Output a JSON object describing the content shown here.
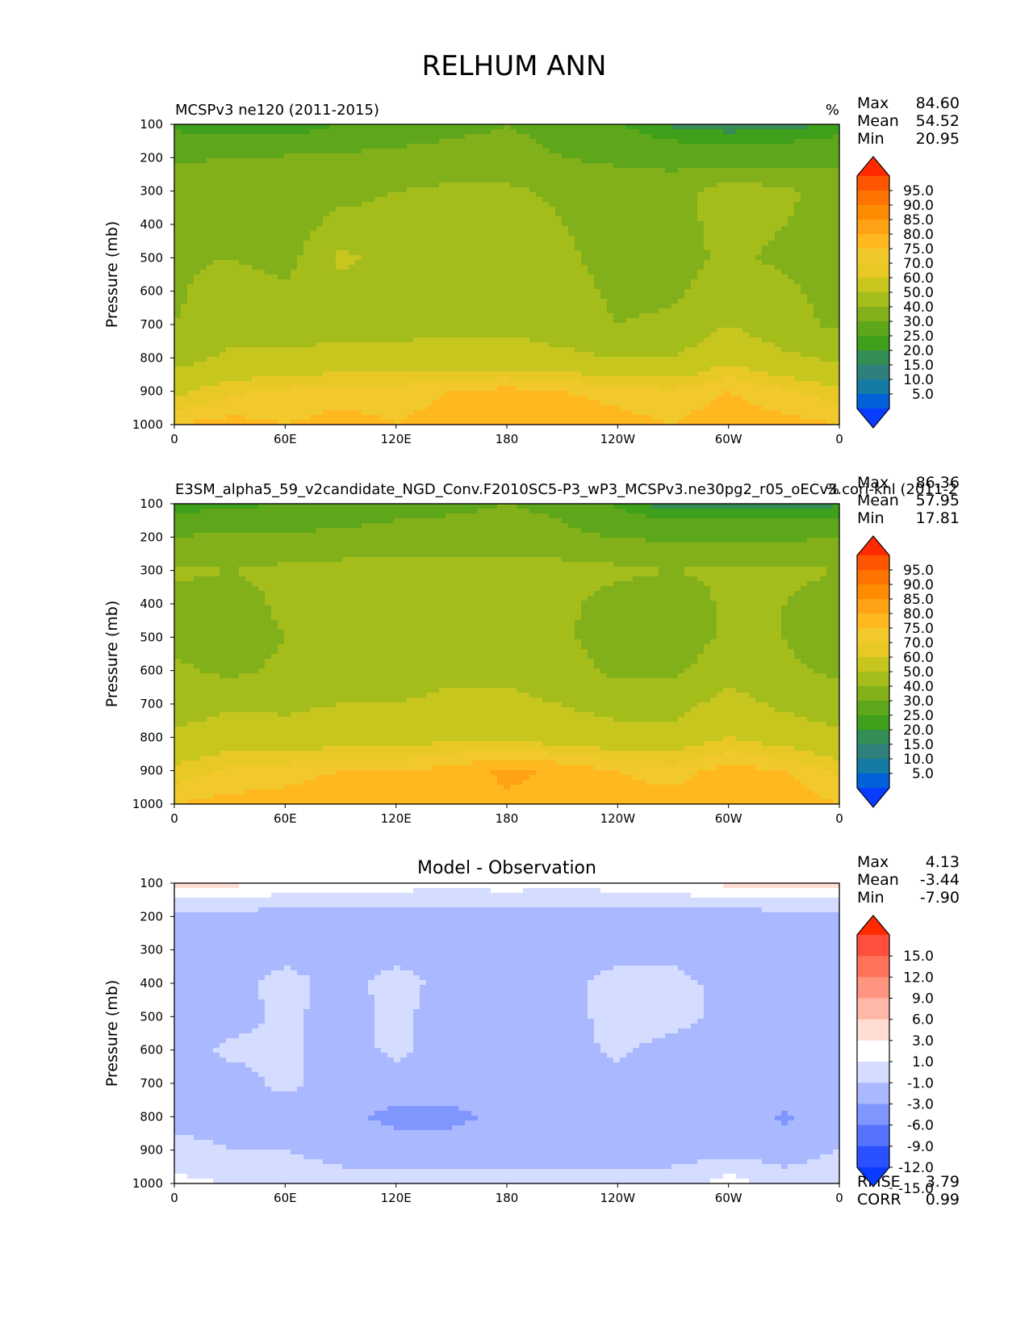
{
  "suptitle": "RELHUM ANN",
  "chart_data": [
    {
      "type": "contour",
      "panel": "test",
      "title_left": "MCSPv3 ne120 (2011-2015)",
      "title_center": "",
      "units": "%",
      "ylabel": "Pressure (mb)",
      "xlabel": "",
      "x_ticks": [
        "0",
        "60E",
        "120E",
        "180",
        "120W",
        "60W",
        "0"
      ],
      "y_ticks": [
        "100",
        "200",
        "300",
        "400",
        "500",
        "600",
        "700",
        "800",
        "900",
        "1000"
      ],
      "ylim": [
        1000,
        100
      ],
      "xlim": [
        0,
        360
      ],
      "stats": [
        {
          "label": "Max",
          "value": "84.60"
        },
        {
          "label": "Mean",
          "value": "54.52"
        },
        {
          "label": "Min",
          "value": "20.95"
        }
      ],
      "colorbar": {
        "labels": [
          "95.0",
          "90.0",
          "85.0",
          "80.0",
          "75.0",
          "70.0",
          "60.0",
          "50.0",
          "40.0",
          "30.0",
          "25.0",
          "20.0",
          "15.0",
          "10.0",
          "5.0"
        ],
        "colors": [
          "#ff2a00",
          "#ff5500",
          "#ff7300",
          "#ff8c00",
          "#ffa216",
          "#ffb81e",
          "#f2c92c",
          "#e8c824",
          "#c6c61f",
          "#a4bd1b",
          "#82b01a",
          "#5ea71a",
          "#3ea01b",
          "#348d54",
          "#2f7f7c",
          "#137ba4",
          "#0061d8",
          "#0a3cff"
        ]
      },
      "field": [
        {
          "p": 100,
          "values": [
            28,
            26,
            24,
            30,
            35,
            38,
            40,
            38,
            30,
            24,
            22,
            23,
            26
          ]
        },
        {
          "p": 200,
          "values": [
            38,
            40,
            41,
            42,
            42,
            43,
            42,
            40,
            38,
            36,
            35,
            36,
            38
          ]
        },
        {
          "p": 300,
          "values": [
            46,
            50,
            48,
            48,
            50,
            52,
            52,
            48,
            46,
            46,
            55,
            52,
            46
          ]
        },
        {
          "p": 400,
          "values": [
            46,
            48,
            46,
            52,
            52,
            56,
            56,
            50,
            46,
            46,
            54,
            50,
            46
          ]
        },
        {
          "p": 500,
          "values": [
            48,
            50,
            46,
            62,
            56,
            58,
            60,
            52,
            46,
            46,
            52,
            48,
            46
          ]
        },
        {
          "p": 600,
          "values": [
            48,
            56,
            52,
            58,
            56,
            58,
            58,
            54,
            48,
            48,
            56,
            52,
            46
          ]
        },
        {
          "p": 700,
          "values": [
            50,
            56,
            54,
            56,
            56,
            58,
            58,
            56,
            50,
            52,
            60,
            54,
            48
          ]
        },
        {
          "p": 800,
          "values": [
            56,
            62,
            62,
            64,
            64,
            64,
            64,
            62,
            60,
            60,
            68,
            62,
            58
          ]
        },
        {
          "p": 900,
          "values": [
            68,
            74,
            76,
            78,
            78,
            80,
            82,
            80,
            78,
            76,
            80,
            76,
            72
          ]
        },
        {
          "p": 1000,
          "values": [
            80,
            82,
            80,
            82,
            80,
            82,
            84,
            84,
            82,
            80,
            84,
            82,
            80
          ]
        }
      ]
    },
    {
      "type": "contour",
      "panel": "reference",
      "title_left": "E3SM_alpha5_59_v2candidate_NGD_Conv.F2010SC5-P3_wP3_MCSPv3.ne30pg2_r05_oECv3.cori-knl (2011-2",
      "title_center": "",
      "units": "%",
      "ylabel": "Pressure (mb)",
      "xlabel": "",
      "x_ticks": [
        "0",
        "60E",
        "120E",
        "180",
        "120W",
        "60W",
        "0"
      ],
      "y_ticks": [
        "100",
        "200",
        "300",
        "400",
        "500",
        "600",
        "700",
        "800",
        "900",
        "1000"
      ],
      "ylim": [
        1000,
        100
      ],
      "xlim": [
        0,
        360
      ],
      "stats": [
        {
          "label": "Max",
          "value": "86.36"
        },
        {
          "label": "Mean",
          "value": "57.95"
        },
        {
          "label": "Min",
          "value": "17.81"
        }
      ],
      "colorbar": {
        "labels": [
          "95.0",
          "90.0",
          "85.0",
          "80.0",
          "75.0",
          "70.0",
          "60.0",
          "50.0",
          "40.0",
          "30.0",
          "25.0",
          "20.0",
          "15.0",
          "10.0",
          "5.0"
        ],
        "colors": [
          "#ff2a00",
          "#ff5500",
          "#ff7300",
          "#ff8c00",
          "#ffa216",
          "#ffb81e",
          "#f2c92c",
          "#e8c824",
          "#c6c61f",
          "#a4bd1b",
          "#82b01a",
          "#5ea71a",
          "#3ea01b",
          "#348d54",
          "#2f7f7c",
          "#137ba4",
          "#0061d8",
          "#0a3cff"
        ]
      },
      "field": [
        {
          "p": 100,
          "values": [
            26,
            28,
            30,
            34,
            36,
            38,
            40,
            38,
            28,
            22,
            22,
            22,
            24
          ]
        },
        {
          "p": 200,
          "values": [
            40,
            42,
            42,
            42,
            44,
            44,
            44,
            42,
            40,
            38,
            38,
            38,
            40
          ]
        },
        {
          "p": 300,
          "values": [
            52,
            50,
            52,
            54,
            54,
            55,
            55,
            54,
            52,
            50,
            52,
            52,
            50
          ]
        },
        {
          "p": 400,
          "values": [
            46,
            46,
            52,
            55,
            55,
            56,
            56,
            52,
            46,
            44,
            52,
            50,
            46
          ]
        },
        {
          "p": 500,
          "values": [
            46,
            44,
            50,
            56,
            56,
            56,
            56,
            52,
            44,
            44,
            52,
            50,
            44
          ]
        },
        {
          "p": 600,
          "values": [
            52,
            48,
            52,
            56,
            56,
            58,
            58,
            54,
            48,
            48,
            56,
            52,
            48
          ]
        },
        {
          "p": 700,
          "values": [
            54,
            58,
            58,
            60,
            60,
            62,
            62,
            60,
            56,
            56,
            64,
            58,
            54
          ]
        },
        {
          "p": 800,
          "values": [
            62,
            66,
            64,
            66,
            66,
            68,
            68,
            66,
            64,
            64,
            70,
            66,
            62
          ]
        },
        {
          "p": 900,
          "values": [
            72,
            76,
            78,
            80,
            80,
            82,
            86,
            84,
            80,
            78,
            82,
            80,
            74
          ]
        },
        {
          "p": 1000,
          "values": [
            80,
            82,
            82,
            84,
            82,
            84,
            84,
            84,
            82,
            82,
            84,
            84,
            80
          ]
        }
      ]
    },
    {
      "type": "contour",
      "panel": "diff",
      "title_left": "",
      "title_center": "Model - Observation",
      "units": "",
      "ylabel": "Pressure (mb)",
      "xlabel": "",
      "x_ticks": [
        "0",
        "60E",
        "120E",
        "180",
        "120W",
        "60W",
        "0"
      ],
      "y_ticks": [
        "100",
        "200",
        "300",
        "400",
        "500",
        "600",
        "700",
        "800",
        "900",
        "1000"
      ],
      "ylim": [
        1000,
        100
      ],
      "xlim": [
        0,
        360
      ],
      "stats": [
        {
          "label": "Max",
          "value": "4.13"
        },
        {
          "label": "Mean",
          "value": "-3.44"
        },
        {
          "label": "Min",
          "value": "-7.90"
        }
      ],
      "stats_bottom": [
        {
          "label": "RMSE",
          "value": "3.79"
        },
        {
          "label": "CORR",
          "value": "0.99"
        }
      ],
      "colorbar": {
        "labels": [
          "15.0",
          "12.0",
          "9.0",
          "6.0",
          "3.0",
          "1.0",
          "-1.0",
          "-3.0",
          "-6.0",
          "-9.0",
          "-12.0",
          "-15.0"
        ],
        "colors": [
          "#ff2a00",
          "#ff4e3c",
          "#ff7259",
          "#ff9580",
          "#ffb8a8",
          "#ffdcd4",
          "#ffffff",
          "#d4dcff",
          "#aab9ff",
          "#8096ff",
          "#5573ff",
          "#2a50ff",
          "#0a3cff"
        ]
      },
      "field": [
        {
          "p": 100,
          "values": [
            2,
            1.5,
            0.5,
            0.5,
            0,
            -0.5,
            0,
            -0.5,
            0,
            0.5,
            1.5,
            2,
            2
          ]
        },
        {
          "p": 200,
          "values": [
            -4,
            -4,
            -4,
            -4,
            -4,
            -4,
            -4,
            -4,
            -4,
            -4,
            -4.5,
            -4,
            -4
          ]
        },
        {
          "p": 300,
          "values": [
            -4,
            -4,
            -4,
            -4,
            -4,
            -4,
            -4,
            -4,
            -4,
            -4,
            -5,
            -4,
            -4
          ]
        },
        {
          "p": 400,
          "values": [
            -4,
            -4,
            -2,
            -4,
            -2,
            -4,
            -4,
            -4,
            -2,
            -2,
            -4,
            -4,
            -4
          ]
        },
        {
          "p": 500,
          "values": [
            -4,
            -4,
            -2.5,
            -4,
            -2.5,
            -4,
            -4,
            -4,
            -2,
            -2,
            -4,
            -4,
            -4
          ]
        },
        {
          "p": 600,
          "values": [
            -4,
            -2.5,
            -2.5,
            -4,
            -2.5,
            -4,
            -4,
            -4,
            -2.5,
            -4,
            -4,
            -4,
            -4
          ]
        },
        {
          "p": 700,
          "values": [
            -4,
            -4,
            -2.5,
            -4,
            -4,
            -4,
            -4,
            -4,
            -4,
            -4,
            -4,
            -4,
            -4
          ]
        },
        {
          "p": 800,
          "values": [
            -4,
            -4,
            -4,
            -5,
            -7,
            -7,
            -5,
            -4,
            -4,
            -5,
            -4,
            -6.5,
            -4
          ]
        },
        {
          "p": 900,
          "values": [
            -2,
            -3,
            -3,
            -4,
            -4,
            -4,
            -4,
            -4,
            -4,
            -4,
            -4,
            -4,
            -3
          ]
        },
        {
          "p": 1000,
          "values": [
            -0.5,
            -1,
            -1.5,
            -2,
            -2,
            -2,
            -2,
            -2,
            -2,
            -2,
            0,
            -2,
            -1.5
          ]
        }
      ]
    }
  ]
}
